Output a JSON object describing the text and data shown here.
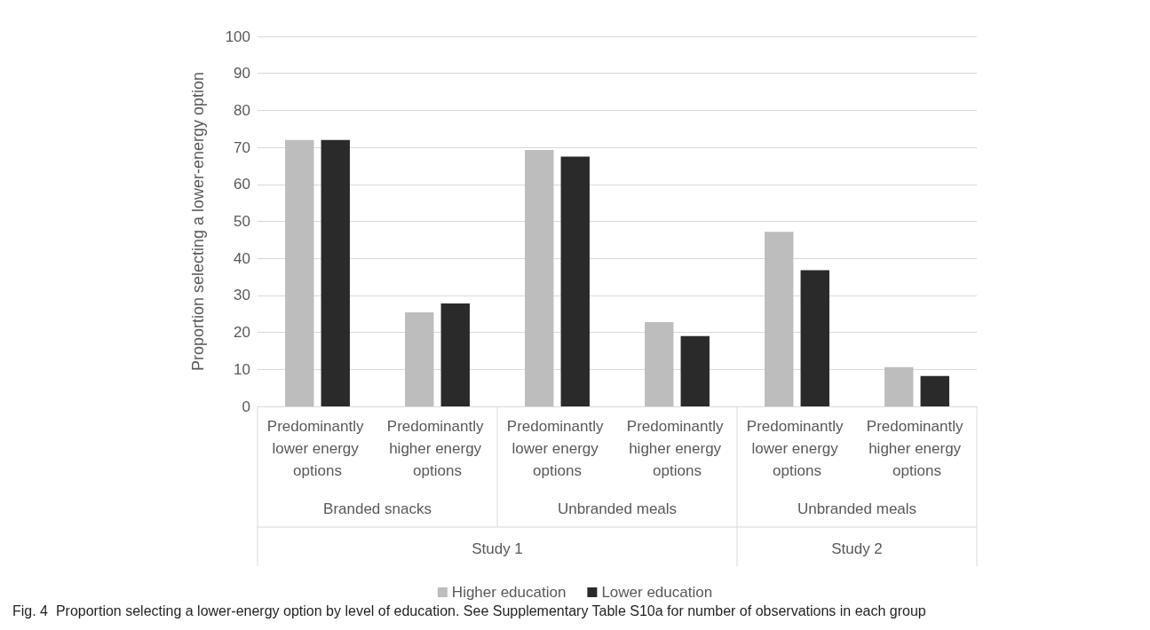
{
  "chart_data": {
    "type": "bar",
    "ylabel": "Proportion selecting a lower-energy option",
    "categories": [
      "Predominantly lower energy options",
      "Predominantly higher energy options",
      "Predominantly lower energy options",
      "Predominantly higher energy options",
      "Predominantly lower energy options",
      "Predominantly higher energy options"
    ],
    "series": [
      {
        "name": "Higher education",
        "color": "#bdbdbd",
        "values": [
          72,
          25.4,
          69.3,
          22.8,
          47.2,
          10.6
        ]
      },
      {
        "name": "Lower education",
        "color": "#2a2a2a",
        "values": [
          72,
          27.8,
          67.5,
          19,
          36.8,
          8.2
        ]
      }
    ],
    "ylim": [
      0,
      100
    ],
    "yticks": [
      0,
      10,
      20,
      30,
      40,
      50,
      60,
      70,
      80,
      90,
      100
    ],
    "grid": "y",
    "legend": "bottom",
    "annotations": [
      "Branded snacks",
      "Unbranded meals",
      "Unbranded meals",
      "Study 1",
      "Study 2",
      "Fig. 4  Proportion selecting a lower-energy option by level of education. See Supplementary Table S10a for number of observations in each group"
    ]
  }
}
